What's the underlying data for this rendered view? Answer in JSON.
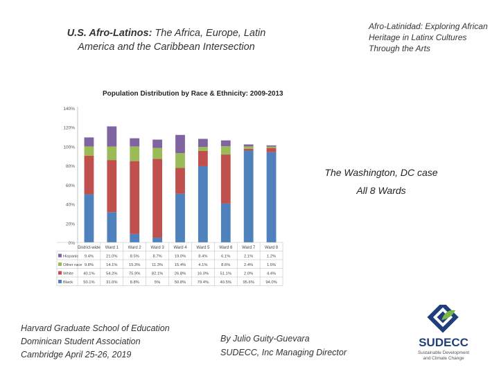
{
  "slide": {
    "title_left_bold": "U.S. Afro-Latinos:",
    "title_left_rest": " The Africa, Europe, Latin America and the Caribbean Intersection",
    "title_right": "Afro-Latinidad: Exploring African Heritage in Latinx Cultures Through the Arts",
    "case_line1": "The Washington, DC case",
    "case_line2": "All 8 Wards",
    "footer_left": [
      "Harvard Graduate School of Education",
      "Dominican Student Association",
      "Cambridge April 25-26, 2019"
    ],
    "footer_mid": [
      "By Julio Guity-Guevara",
      "SUDECC, Inc Managing Director"
    ]
  },
  "logo": {
    "name": "SUDECC",
    "tagline_1": "Sustainable Development",
    "tagline_2": "and Climate Change",
    "color_primary": "#1f3f7a",
    "color_accent": "#7ab648"
  },
  "chart_data": {
    "type": "bar",
    "stacked": true,
    "title": "Population Distribution by Race & Ethnicity: 2009-2013",
    "categories": [
      "District-wide",
      "Ward 1",
      "Ward 2",
      "Ward 3",
      "Ward 4",
      "Ward 5",
      "Ward 6",
      "Ward 7",
      "Ward 8"
    ],
    "y_ticks": [
      "140%",
      "120%",
      "100%",
      "80%",
      "60%",
      "40%",
      "20%",
      "0%"
    ],
    "ylim": [
      0,
      140
    ],
    "series": [
      {
        "name": "Black",
        "color": "#4f81bd",
        "labels": [
          "50.1%",
          "31.6%",
          "8.8%",
          "5%",
          "50.8%",
          "79.4%",
          "40.5%",
          "95.6%",
          "94.0%"
        ],
        "values": [
          50.1,
          31.6,
          8.8,
          5,
          50.8,
          79.4,
          40.5,
          95.6,
          94.0
        ]
      },
      {
        "name": "White",
        "color": "#c0504d",
        "labels": [
          "40.1%",
          "54.2%",
          "75.9%",
          "82.1%",
          "26.8%",
          "16.0%",
          "51.1%",
          "2.0%",
          "4.4%"
        ],
        "values": [
          40.1,
          54.2,
          75.9,
          82.1,
          26.8,
          16.0,
          51.1,
          2.0,
          4.4
        ]
      },
      {
        "name": "Other race",
        "color": "#9bbb59",
        "labels": [
          "9.8%",
          "14.1%",
          "15.3%",
          "11.3%",
          "15.4%",
          "4.1%",
          "8.6%",
          "2.4%",
          "1.5%"
        ],
        "values": [
          9.8,
          14.1,
          15.3,
          11.3,
          15.4,
          4.1,
          8.6,
          2.4,
          1.5
        ]
      },
      {
        "name": "Hispanic",
        "color": "#8064a2",
        "labels": [
          "9.4%",
          "21.0%",
          "8.5%",
          "8.7%",
          "19.0%",
          "8.4%",
          "6.1%",
          "2.1%",
          "1.2%"
        ],
        "values": [
          9.4,
          21.0,
          8.5,
          8.7,
          19.0,
          8.4,
          6.1,
          2.1,
          1.2
        ]
      }
    ],
    "table_row_order": [
      "Hispanic",
      "Other race",
      "White",
      "Black"
    ],
    "grid": false,
    "legend": "table-below"
  }
}
